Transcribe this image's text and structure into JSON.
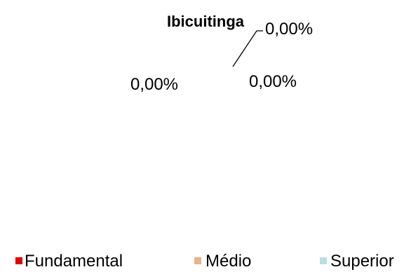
{
  "chart_data": {
    "type": "pie",
    "title": "Ibicuitinga",
    "categories": [
      "Fundamental",
      "Médio",
      "Superior"
    ],
    "values": [
      0,
      0,
      0
    ],
    "data_labels": [
      "0,00%",
      "0,00%",
      "0,00%"
    ],
    "legend_position": "bottom",
    "colors": {
      "Fundamental": "#e00000",
      "Médio": "#e6b38a",
      "Superior": "#b8dfe3"
    }
  }
}
